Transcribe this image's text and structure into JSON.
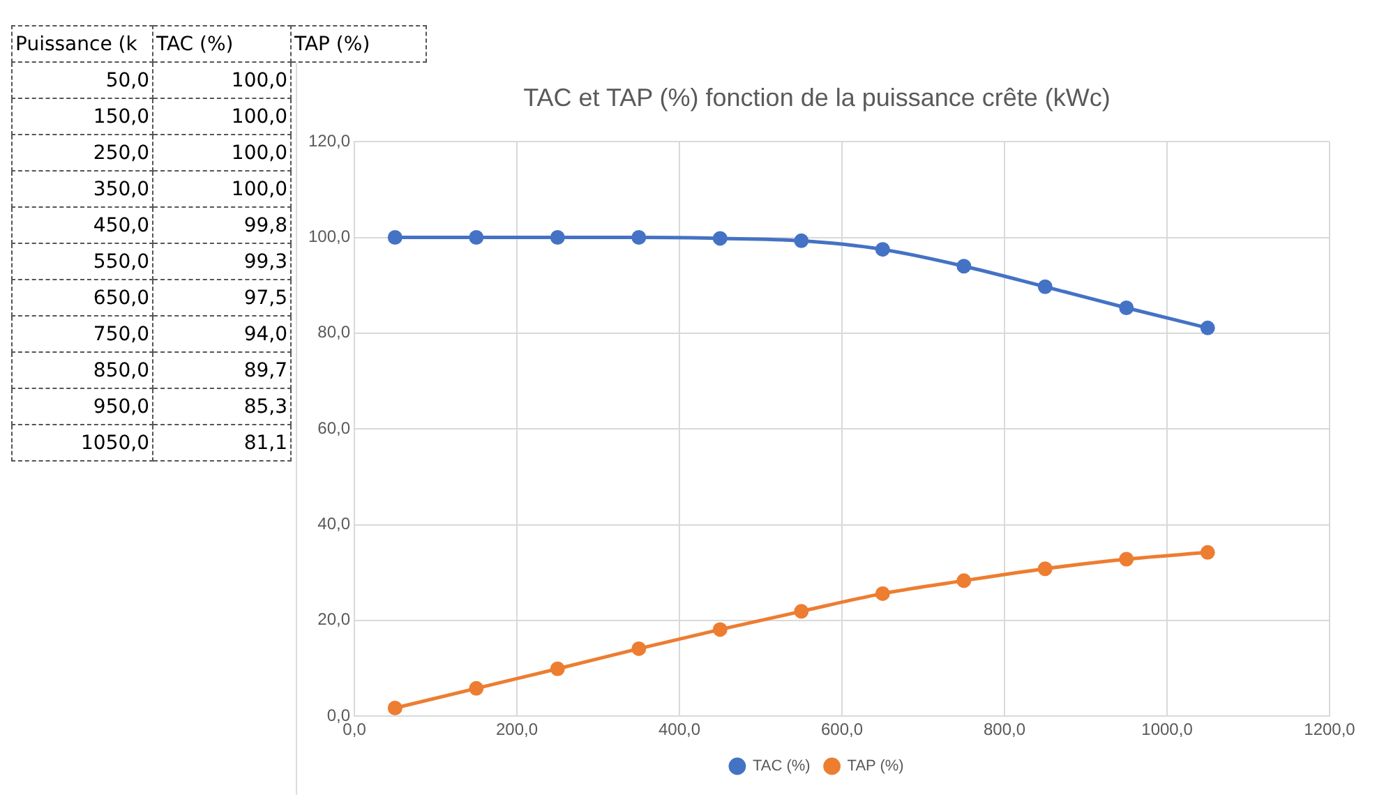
{
  "chart_data": {
    "type": "line",
    "title": "TAC et TAP (%) fonction de la puissance crête (kWc)",
    "annotations": [
      "Puissance (k",
      "TAC (%)",
      "TAP (%)",
      "50,0",
      "100,0",
      "150,0",
      "100,0",
      "250,0",
      "100,0",
      "350,0",
      "100,0",
      "450,0",
      "99,8",
      "550,0",
      "99,3",
      "650,0",
      "97,5",
      "750,0",
      "94,0",
      "850,0",
      "89,7",
      "950,0",
      "85,3",
      "1050,0",
      "81,1"
    ],
    "x": [
      50,
      150,
      250,
      350,
      450,
      550,
      650,
      750,
      850,
      950,
      1050
    ],
    "series": [
      {
        "name": "TAC (%)",
        "color": "#4472c4",
        "values": [
          100,
          100,
          100,
          100,
          99.8,
          99.3,
          97.5,
          94.0,
          89.7,
          85.3,
          81.1
        ]
      },
      {
        "name": "TAP (%)",
        "color": "#ed7d31",
        "values": [
          1.7,
          5.8,
          9.9,
          14.1,
          18.1,
          21.9,
          25.6,
          28.3,
          30.8,
          32.8,
          34.2
        ]
      }
    ],
    "xlim": [
      0,
      1200
    ],
    "xticks": [
      {
        "value": 0,
        "label": "0,0"
      },
      {
        "value": 200,
        "label": "200,0"
      },
      {
        "value": 400,
        "label": "400,0"
      },
      {
        "value": 600,
        "label": "600,0"
      },
      {
        "value": 800,
        "label": "800,0"
      },
      {
        "value": 1000,
        "label": "1000,0"
      },
      {
        "value": 1200,
        "label": "1200,0"
      }
    ],
    "ylim": [
      0,
      120
    ],
    "yticks": [
      {
        "value": 0,
        "label": "0,0"
      },
      {
        "value": 20,
        "label": "20,0"
      },
      {
        "value": 40,
        "label": "40,0"
      },
      {
        "value": 60,
        "label": "60,0"
      },
      {
        "value": 80,
        "label": "80,0"
      },
      {
        "value": 100,
        "label": "100,0"
      },
      {
        "value": 120,
        "label": "120,0"
      }
    ],
    "grid": true,
    "legend": "bottom",
    "marker": "circle",
    "line_style": "solid"
  }
}
